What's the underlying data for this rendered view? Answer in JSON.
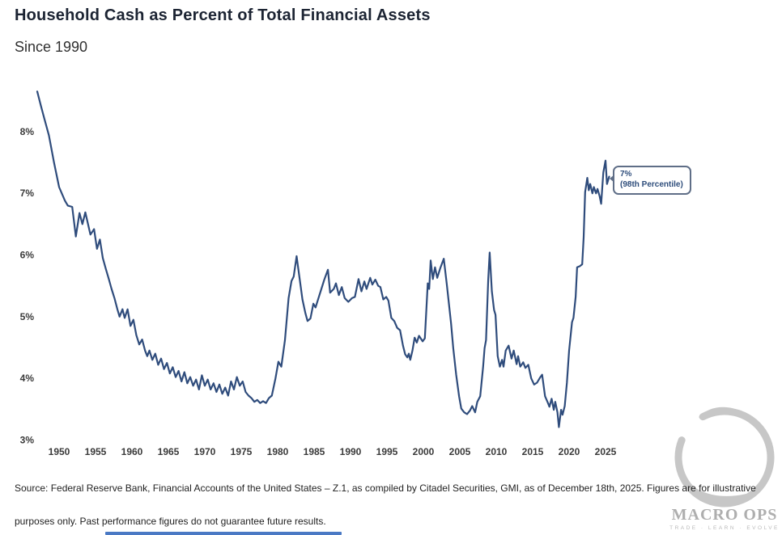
{
  "header": {
    "title": "Household Cash as Percent of Total Financial Assets",
    "subtitle": "Since 1990"
  },
  "callout": {
    "line1": "7%",
    "line2": "(98th Percentile)"
  },
  "footer": {
    "line1": "Source: Federal Reserve Bank, Financial Accounts of the United States – Z.1, as compiled by Citadel Securities, GMI, as of December 18th, 2025. Figures are for illustrative",
    "line2": "purposes only. Past performance figures do not guarantee future results."
  },
  "watermark": {
    "brand": "MACRO OPS",
    "tagline": "TRADE · LEARN · EVOLVE",
    "icon": "enso-circle-icon"
  },
  "colors": {
    "line": "#2f4c7c",
    "callout_border": "#5f6e87",
    "callout_text": "#2e4d7b",
    "accent_underline": "#4a79c4",
    "watermark_gray": "#a6a6a6"
  },
  "chart_data": {
    "type": "line",
    "title": "Household Cash as Percent of Total Financial Assets",
    "subtitle": "Since 1990",
    "xlabel": "",
    "ylabel": "",
    "x_ticks": [
      1950,
      1955,
      1960,
      1965,
      1970,
      1975,
      1980,
      1985,
      1990,
      1995,
      2000,
      2005,
      2010,
      2015,
      2020,
      2025
    ],
    "y_ticks": [
      "8%",
      "7%",
      "6%",
      "5%",
      "4%",
      "3%"
    ],
    "y_tick_values": [
      8,
      7,
      6,
      5,
      4,
      3
    ],
    "x_range": [
      1946.8,
      2026.5
    ],
    "y_range": [
      2.95,
      8.8
    ],
    "grid": false,
    "legend": "none",
    "annotation": {
      "text": "7% (98th Percentile)",
      "x": 2025.5,
      "y": 7.2
    },
    "series": [
      {
        "name": "Household cash as % of total financial assets",
        "points": [
          [
            1947.0,
            8.65
          ],
          [
            1947.5,
            8.42
          ],
          [
            1948.0,
            8.2
          ],
          [
            1948.6,
            7.94
          ],
          [
            1949.3,
            7.5
          ],
          [
            1950.0,
            7.1
          ],
          [
            1950.8,
            6.88
          ],
          [
            1951.2,
            6.8
          ],
          [
            1951.8,
            6.78
          ],
          [
            1952.3,
            6.3
          ],
          [
            1952.8,
            6.68
          ],
          [
            1953.2,
            6.5
          ],
          [
            1953.6,
            6.69
          ],
          [
            1954.3,
            6.33
          ],
          [
            1954.8,
            6.42
          ],
          [
            1955.2,
            6.1
          ],
          [
            1955.6,
            6.25
          ],
          [
            1956.0,
            5.95
          ],
          [
            1956.4,
            5.78
          ],
          [
            1956.8,
            5.62
          ],
          [
            1957.2,
            5.45
          ],
          [
            1957.6,
            5.3
          ],
          [
            1958.0,
            5.12
          ],
          [
            1958.3,
            5.0
          ],
          [
            1958.7,
            5.12
          ],
          [
            1959.0,
            4.98
          ],
          [
            1959.4,
            5.12
          ],
          [
            1959.8,
            4.85
          ],
          [
            1960.2,
            4.95
          ],
          [
            1960.6,
            4.7
          ],
          [
            1961.0,
            4.55
          ],
          [
            1961.4,
            4.63
          ],
          [
            1961.8,
            4.45
          ],
          [
            1962.1,
            4.36
          ],
          [
            1962.4,
            4.45
          ],
          [
            1962.8,
            4.3
          ],
          [
            1963.2,
            4.4
          ],
          [
            1963.6,
            4.22
          ],
          [
            1964.0,
            4.32
          ],
          [
            1964.4,
            4.15
          ],
          [
            1964.8,
            4.25
          ],
          [
            1965.2,
            4.08
          ],
          [
            1965.6,
            4.18
          ],
          [
            1966.0,
            4.02
          ],
          [
            1966.4,
            4.12
          ],
          [
            1966.8,
            3.95
          ],
          [
            1967.2,
            4.1
          ],
          [
            1967.6,
            3.92
          ],
          [
            1968.0,
            4.02
          ],
          [
            1968.4,
            3.88
          ],
          [
            1968.8,
            3.98
          ],
          [
            1969.2,
            3.82
          ],
          [
            1969.6,
            4.05
          ],
          [
            1970.0,
            3.88
          ],
          [
            1970.4,
            3.98
          ],
          [
            1970.8,
            3.82
          ],
          [
            1971.2,
            3.92
          ],
          [
            1971.6,
            3.78
          ],
          [
            1972.0,
            3.9
          ],
          [
            1972.4,
            3.75
          ],
          [
            1972.8,
            3.85
          ],
          [
            1973.2,
            3.72
          ],
          [
            1973.6,
            3.95
          ],
          [
            1974.0,
            3.82
          ],
          [
            1974.4,
            4.02
          ],
          [
            1974.8,
            3.88
          ],
          [
            1975.2,
            3.95
          ],
          [
            1975.6,
            3.78
          ],
          [
            1976.0,
            3.72
          ],
          [
            1976.4,
            3.68
          ],
          [
            1976.8,
            3.62
          ],
          [
            1977.2,
            3.65
          ],
          [
            1977.6,
            3.6
          ],
          [
            1978.0,
            3.63
          ],
          [
            1978.4,
            3.6
          ],
          [
            1978.8,
            3.68
          ],
          [
            1979.2,
            3.72
          ],
          [
            1979.7,
            4.0
          ],
          [
            1980.1,
            4.27
          ],
          [
            1980.5,
            4.19
          ],
          [
            1981.0,
            4.62
          ],
          [
            1981.5,
            5.3
          ],
          [
            1981.9,
            5.58
          ],
          [
            1982.2,
            5.65
          ],
          [
            1982.6,
            5.98
          ],
          [
            1983.0,
            5.63
          ],
          [
            1983.4,
            5.28
          ],
          [
            1983.8,
            5.06
          ],
          [
            1984.1,
            4.93
          ],
          [
            1984.5,
            4.97
          ],
          [
            1984.9,
            5.21
          ],
          [
            1985.2,
            5.15
          ],
          [
            1985.6,
            5.3
          ],
          [
            1986.0,
            5.45
          ],
          [
            1986.4,
            5.6
          ],
          [
            1986.9,
            5.76
          ],
          [
            1987.2,
            5.39
          ],
          [
            1987.7,
            5.45
          ],
          [
            1988.0,
            5.54
          ],
          [
            1988.4,
            5.35
          ],
          [
            1988.8,
            5.48
          ],
          [
            1989.2,
            5.3
          ],
          [
            1989.7,
            5.24
          ],
          [
            1990.2,
            5.3
          ],
          [
            1990.6,
            5.32
          ],
          [
            1991.1,
            5.61
          ],
          [
            1991.5,
            5.41
          ],
          [
            1991.9,
            5.57
          ],
          [
            1992.2,
            5.45
          ],
          [
            1992.7,
            5.63
          ],
          [
            1993.0,
            5.52
          ],
          [
            1993.4,
            5.6
          ],
          [
            1993.8,
            5.5
          ],
          [
            1994.1,
            5.48
          ],
          [
            1994.5,
            5.28
          ],
          [
            1994.9,
            5.32
          ],
          [
            1995.2,
            5.26
          ],
          [
            1995.6,
            4.98
          ],
          [
            1996.0,
            4.93
          ],
          [
            1996.4,
            4.82
          ],
          [
            1996.8,
            4.78
          ],
          [
            1997.2,
            4.53
          ],
          [
            1997.5,
            4.39
          ],
          [
            1997.8,
            4.34
          ],
          [
            1998.0,
            4.4
          ],
          [
            1998.2,
            4.3
          ],
          [
            1998.5,
            4.45
          ],
          [
            1998.8,
            4.66
          ],
          [
            1999.1,
            4.58
          ],
          [
            1999.4,
            4.69
          ],
          [
            1999.9,
            4.6
          ],
          [
            2000.2,
            4.65
          ],
          [
            2000.6,
            5.54
          ],
          [
            2000.8,
            5.45
          ],
          [
            2001.0,
            5.91
          ],
          [
            2001.3,
            5.61
          ],
          [
            2001.6,
            5.8
          ],
          [
            2001.9,
            5.63
          ],
          [
            2002.3,
            5.78
          ],
          [
            2002.8,
            5.94
          ],
          [
            2003.2,
            5.54
          ],
          [
            2003.8,
            4.89
          ],
          [
            2004.1,
            4.49
          ],
          [
            2004.5,
            4.06
          ],
          [
            2004.9,
            3.71
          ],
          [
            2005.2,
            3.51
          ],
          [
            2005.6,
            3.45
          ],
          [
            2006.0,
            3.42
          ],
          [
            2006.4,
            3.48
          ],
          [
            2006.7,
            3.55
          ],
          [
            2007.1,
            3.45
          ],
          [
            2007.4,
            3.62
          ],
          [
            2007.8,
            3.71
          ],
          [
            2008.2,
            4.19
          ],
          [
            2008.4,
            4.49
          ],
          [
            2008.6,
            4.62
          ],
          [
            2008.9,
            5.6
          ],
          [
            2009.1,
            6.04
          ],
          [
            2009.4,
            5.41
          ],
          [
            2009.7,
            5.11
          ],
          [
            2009.9,
            5.03
          ],
          [
            2010.2,
            4.36
          ],
          [
            2010.5,
            4.19
          ],
          [
            2010.8,
            4.3
          ],
          [
            2011.0,
            4.19
          ],
          [
            2011.3,
            4.45
          ],
          [
            2011.7,
            4.53
          ],
          [
            2012.1,
            4.32
          ],
          [
            2012.4,
            4.45
          ],
          [
            2012.8,
            4.23
          ],
          [
            2013.0,
            4.36
          ],
          [
            2013.3,
            4.19
          ],
          [
            2013.7,
            4.26
          ],
          [
            2014.0,
            4.17
          ],
          [
            2014.4,
            4.22
          ],
          [
            2014.8,
            4.0
          ],
          [
            2015.2,
            3.9
          ],
          [
            2015.6,
            3.93
          ],
          [
            2016.0,
            4.01
          ],
          [
            2016.3,
            4.06
          ],
          [
            2016.7,
            3.71
          ],
          [
            2017.1,
            3.6
          ],
          [
            2017.3,
            3.54
          ],
          [
            2017.6,
            3.67
          ],
          [
            2017.9,
            3.49
          ],
          [
            2018.1,
            3.62
          ],
          [
            2018.4,
            3.45
          ],
          [
            2018.6,
            3.21
          ],
          [
            2018.9,
            3.49
          ],
          [
            2019.1,
            3.41
          ],
          [
            2019.4,
            3.55
          ],
          [
            2019.7,
            3.93
          ],
          [
            2020.0,
            4.45
          ],
          [
            2020.4,
            4.91
          ],
          [
            2020.6,
            4.98
          ],
          [
            2020.9,
            5.32
          ],
          [
            2021.1,
            5.8
          ],
          [
            2021.5,
            5.82
          ],
          [
            2021.8,
            5.85
          ],
          [
            2022.0,
            6.29
          ],
          [
            2022.2,
            7.02
          ],
          [
            2022.5,
            7.25
          ],
          [
            2022.7,
            7.05
          ],
          [
            2022.9,
            7.15
          ],
          [
            2023.2,
            7.0
          ],
          [
            2023.4,
            7.1
          ],
          [
            2023.7,
            7.0
          ],
          [
            2023.9,
            7.07
          ],
          [
            2024.2,
            6.95
          ],
          [
            2024.4,
            6.83
          ],
          [
            2024.7,
            7.34
          ],
          [
            2025.0,
            7.53
          ],
          [
            2025.2,
            7.15
          ],
          [
            2025.5,
            7.27
          ]
        ]
      }
    ]
  }
}
